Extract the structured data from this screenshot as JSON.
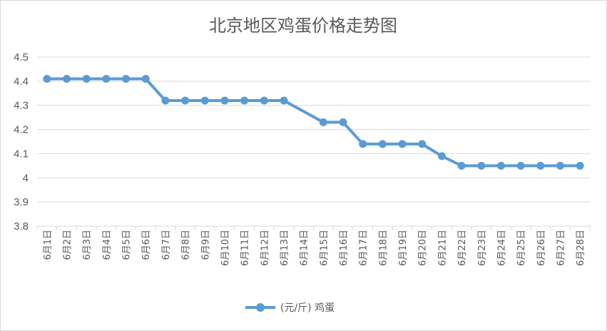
{
  "chart_data": {
    "type": "line",
    "title": "北京地区鸡蛋价格走势图",
    "xlabel": "",
    "ylabel": "",
    "ylim": [
      3.8,
      4.5
    ],
    "yticks": [
      "3.8",
      "3.9",
      "4",
      "4.1",
      "4.2",
      "4.3",
      "4.4",
      "4.5"
    ],
    "categories": [
      "6月1日",
      "6月2日",
      "6月3日",
      "6月4日",
      "6月5日",
      "6月6日",
      "6月7日",
      "6月8日",
      "6月9日",
      "6月10日",
      "6月11日",
      "6月12日",
      "6月13日",
      "6月14日",
      "6月15日",
      "6月16日",
      "6月17日",
      "6月18日",
      "6月19日",
      "6月20日",
      "6月21日",
      "6月22日",
      "6月23日",
      "6月24日",
      "6月25日",
      "6月26日",
      "6月27日",
      "6月28日"
    ],
    "series": [
      {
        "name": "(元/斤) 鸡蛋",
        "color": "#5b9bd5",
        "values": [
          4.41,
          4.41,
          4.41,
          4.41,
          4.41,
          4.41,
          4.32,
          4.32,
          4.32,
          4.32,
          4.32,
          4.32,
          4.32,
          null,
          4.23,
          4.23,
          4.14,
          4.14,
          4.14,
          4.14,
          4.09,
          4.05,
          4.05,
          4.05,
          4.05,
          4.05,
          4.05,
          4.05
        ]
      }
    ],
    "grid": true,
    "legend": "bottom"
  }
}
